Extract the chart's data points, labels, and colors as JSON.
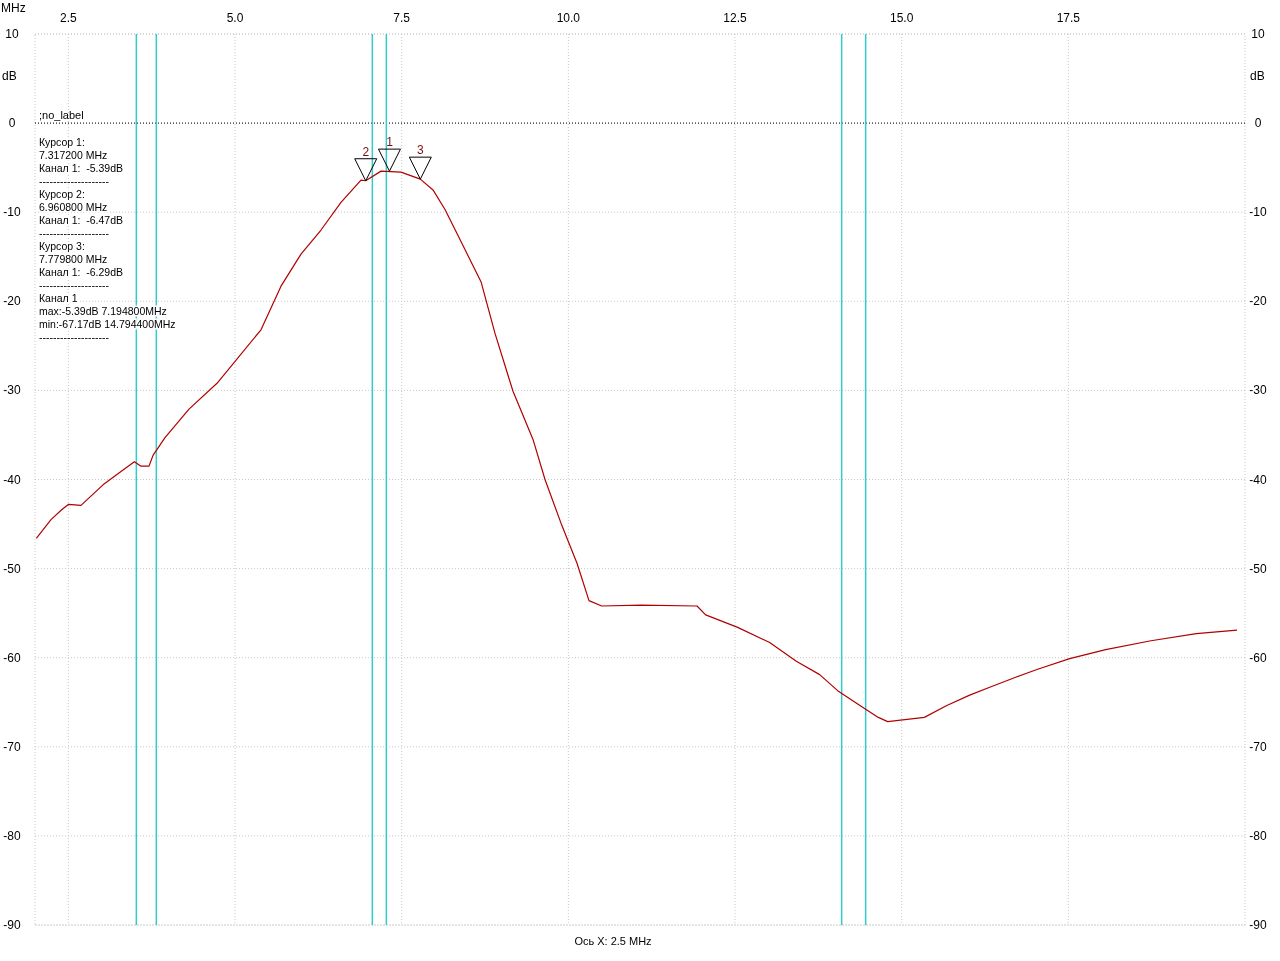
{
  "chart_data": {
    "type": "line",
    "xlabel": "MHz",
    "ylabel": "dB",
    "y2label": "dB",
    "xlim": [
      2.0,
      20.15
    ],
    "xticks": [
      2.5,
      {
        "value": 5,
        "label": "5.0"
      },
      7.5,
      {
        "value": 10,
        "label": "10.0"
      },
      12.5,
      {
        "value": 15,
        "label": "15.0"
      },
      17.5
    ],
    "ylim": [
      -90,
      10
    ],
    "yticks": [
      -90,
      -80,
      -70,
      -60,
      -50,
      -40,
      -30,
      -20,
      -10,
      0,
      10
    ],
    "y2lim": [
      -90,
      10
    ],
    "y2ticks": [
      -90,
      -80,
      -70,
      -60,
      -50,
      -40,
      -30,
      -20,
      -10,
      0,
      10
    ],
    "grid": true,
    "series": [
      {
        "color": "#b00000",
        "x": [
          2.02,
          2.24,
          2.4,
          2.5,
          2.69,
          3.02,
          3.29,
          3.49,
          3.59,
          3.71,
          3.77,
          3.95,
          4.31,
          4.73,
          5.39,
          5.69,
          5.99,
          6.29,
          6.59,
          6.89,
          6.96,
          7.19,
          7.49,
          7.78,
          7.97,
          8.15,
          8.39,
          8.69,
          8.9,
          9.17,
          9.47,
          9.65,
          9.89,
          10.13,
          10.31,
          10.5,
          11.09,
          11.93,
          12.06,
          12.54,
          13.02,
          13.42,
          13.77,
          14.04,
          14.38,
          14.65,
          14.79,
          15.34,
          15.67,
          16.02,
          16.36,
          16.71,
          17.04,
          17.52,
          18.06,
          18.74,
          19.42,
          20.03
        ],
        "values": [
          -46.6,
          -44.5,
          -43.4,
          -42.8,
          -42.9,
          -40.6,
          -39.1,
          -38.0,
          -38.5,
          -38.5,
          -37.3,
          -35.3,
          -32.1,
          -29.2,
          -23.2,
          -18.3,
          -14.7,
          -12.0,
          -8.9,
          -6.4,
          -6.47,
          -5.39,
          -5.5,
          -6.29,
          -7.5,
          -9.7,
          -13.3,
          -17.8,
          -23.6,
          -30.1,
          -35.5,
          -40.0,
          -44.9,
          -49.4,
          -53.6,
          -54.2,
          -54.1,
          -54.2,
          -55.2,
          -56.6,
          -58.3,
          -60.4,
          -61.9,
          -63.7,
          -65.4,
          -66.7,
          -67.17,
          -66.7,
          -65.4,
          -64.2,
          -63.2,
          -62.2,
          -61.3,
          -60.1,
          -59.1,
          -58.1,
          -57.3,
          -56.9
        ]
      }
    ],
    "ref_lines": [
      {
        "axis": "y",
        "value": 0,
        "label": ";no_label",
        "color": "#000000",
        "line_style": "dotted"
      },
      {
        "axis": "x",
        "value": 3.52,
        "color": "#33cccc"
      },
      {
        "axis": "x",
        "value": 3.82,
        "color": "#33cccc"
      },
      {
        "axis": "x",
        "value": 7.06,
        "color": "#33cccc"
      },
      {
        "axis": "x",
        "value": 7.27,
        "color": "#33cccc"
      },
      {
        "axis": "x",
        "value": 14.1,
        "color": "#33cccc"
      },
      {
        "axis": "x",
        "value": 14.46,
        "color": "#33cccc"
      }
    ],
    "annotations": [
      {
        "text": "1",
        "x": 7.3172,
        "y": -5.39
      },
      {
        "text": "2",
        "x": 6.9608,
        "y": -6.47
      },
      {
        "text": "3",
        "x": 7.7798,
        "y": -6.29
      },
      "Курсор 1:",
      "7.317200 MHz",
      "Канал 1:  -5.39dB",
      "--------------------",
      "Курсор 2:",
      "6.960800 MHz",
      "Канал 1:  -6.47dB",
      "--------------------",
      "Курсор 3:",
      "7.779800 MHz",
      "Канал 1:  -6.29dB",
      "--------------------",
      "Канал 1",
      "max:-5.39dB 7.194800MHz",
      "min:-67.17dB 14.794400MHz",
      "--------------------",
      "Ось X: 2.5 MHz"
    ]
  }
}
